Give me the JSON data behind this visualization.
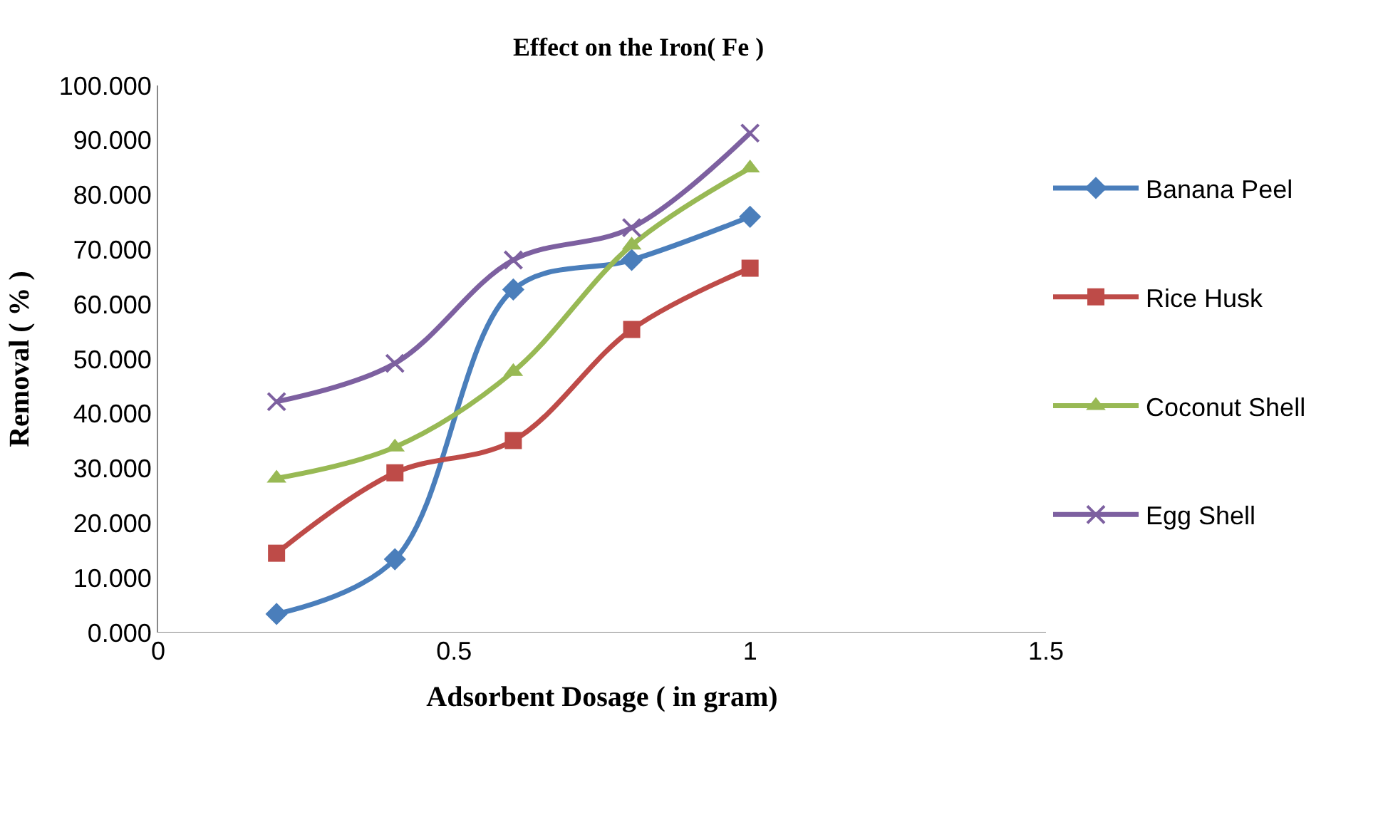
{
  "chart_data": {
    "type": "line",
    "title": "Effect on the Iron( Fe )",
    "xlabel": "Adsorbent Dosage ( in gram)",
    "ylabel": "Removal ( % )",
    "x": [
      0.2,
      0.4,
      0.6,
      0.8,
      1.0
    ],
    "series": [
      {
        "name": "Banana Peel",
        "color": "#4a7ebb",
        "marker": "diamond",
        "values": [
          3.4,
          13.4,
          62.7,
          68.1,
          76.0
        ]
      },
      {
        "name": "Rice Husk",
        "color": "#be4b48",
        "marker": "square",
        "values": [
          14.5,
          29.2,
          35.1,
          55.4,
          66.6
        ]
      },
      {
        "name": "Coconut Shell",
        "color": "#98b954",
        "marker": "triangle",
        "values": [
          28.2,
          33.9,
          47.7,
          70.8,
          84.9
        ]
      },
      {
        "name": "Egg Shell",
        "color": "#7d60a0",
        "marker": "cross",
        "values": [
          42.2,
          49.2,
          68.1,
          74.0,
          91.3
        ]
      }
    ],
    "xlim": [
      0,
      1.5
    ],
    "xticks": [
      0,
      0.5,
      1,
      1.5
    ],
    "ylim": [
      0,
      100
    ],
    "yticks": [
      {
        "value": 0,
        "label": "0.000"
      },
      {
        "value": 10,
        "label": "10.000"
      },
      {
        "value": 20,
        "label": "20.000"
      },
      {
        "value": 30,
        "label": "30.000"
      },
      {
        "value": 40,
        "label": "40.000"
      },
      {
        "value": 50,
        "label": "50.000"
      },
      {
        "value": 60,
        "label": "60.000"
      },
      {
        "value": 70,
        "label": "70.000"
      },
      {
        "value": 80,
        "label": "80.000"
      },
      {
        "value": 90,
        "label": "90.000"
      },
      {
        "value": 100,
        "label": "100.000"
      }
    ],
    "legend": "right"
  }
}
